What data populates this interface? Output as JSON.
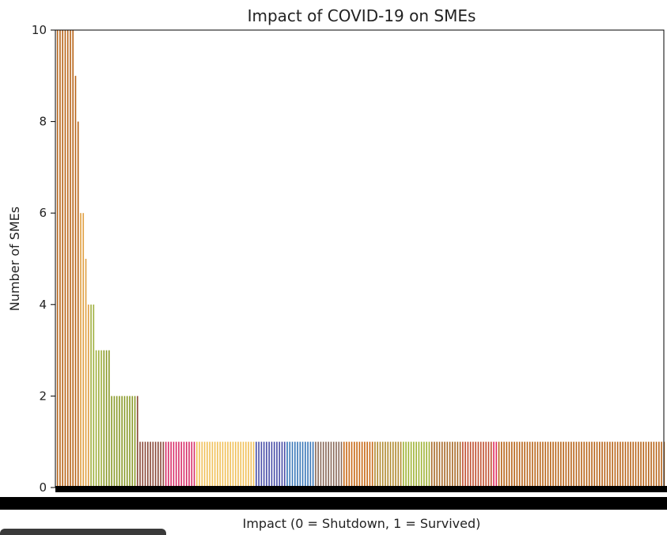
{
  "chart_data": {
    "type": "bar",
    "title": "Impact of COVID-19 on SMEs",
    "xlabel": "Impact (0 = Shutdown, 1 = Survived)",
    "ylabel": "Number of SMEs",
    "ylim": [
      0,
      10
    ],
    "yticks": [
      0,
      2,
      4,
      6,
      8,
      10
    ],
    "grid": false,
    "series": [
      {
        "values": [
          10,
          10,
          10,
          10,
          10,
          10,
          10,
          9,
          8,
          6,
          6,
          5,
          4,
          4,
          4,
          3,
          3,
          3,
          3,
          3,
          3,
          2,
          2,
          2,
          2,
          2,
          2,
          2,
          2,
          2,
          2,
          2,
          1,
          1,
          1,
          1,
          1,
          1,
          1,
          1,
          1,
          1,
          1,
          1,
          1,
          1,
          1,
          1,
          1,
          1,
          1,
          1,
          1,
          1,
          1,
          1,
          1,
          1,
          1,
          1,
          1,
          1,
          1,
          1,
          1,
          1,
          1,
          1,
          1,
          1,
          1,
          1,
          1,
          1,
          1,
          1,
          1,
          1,
          1,
          1,
          1,
          1,
          1,
          1,
          1,
          1,
          1,
          1,
          1,
          1,
          1,
          1,
          1,
          1,
          1,
          1,
          1,
          1,
          1,
          1,
          1,
          1,
          1,
          1,
          1,
          1,
          1,
          1,
          1,
          1,
          1,
          1,
          1,
          1,
          1,
          1,
          1,
          1,
          1,
          1,
          1,
          1,
          1,
          1,
          1,
          1,
          1,
          1,
          1,
          1,
          1,
          1,
          1,
          1,
          1,
          1,
          1,
          1,
          1,
          1,
          1,
          1,
          1,
          1,
          1,
          1,
          1,
          1,
          1,
          1,
          1,
          1,
          1,
          1,
          1,
          1,
          1,
          1,
          1,
          1,
          1,
          1,
          1,
          1,
          1,
          1,
          1,
          1,
          1,
          1,
          1,
          1,
          1,
          1,
          1,
          1,
          1,
          1,
          1,
          1,
          1,
          1,
          1,
          1,
          1,
          1,
          1,
          1,
          1,
          1,
          1,
          1,
          1,
          1,
          1,
          1,
          1,
          1,
          1,
          1,
          1,
          1,
          1,
          1,
          1,
          1,
          1,
          1,
          1,
          1,
          1,
          1,
          1,
          1,
          1,
          1,
          1,
          1,
          1,
          1,
          1,
          1,
          1,
          1,
          1,
          1,
          1,
          1,
          1,
          1,
          1,
          1,
          1,
          1,
          1,
          1
        ]
      }
    ],
    "color_groups": [
      {
        "count": 9,
        "color": "#b8651a"
      },
      {
        "count": 4,
        "color": "#e0a043"
      },
      {
        "count": 5,
        "color": "#a0b040"
      },
      {
        "count": 13,
        "color": "#8a9a2a"
      },
      {
        "count": 11,
        "color": "#8a4a3a"
      },
      {
        "count": 12,
        "color": "#d8306a"
      },
      {
        "count": 23,
        "color": "#f0c05a"
      },
      {
        "count": 12,
        "color": "#4a4fa8"
      },
      {
        "count": 11,
        "color": "#3a78b8"
      },
      {
        "count": 11,
        "color": "#8a6a5a"
      },
      {
        "count": 12,
        "color": "#c86a18"
      },
      {
        "count": 11,
        "color": "#b08a30"
      },
      {
        "count": 11,
        "color": "#a0b438"
      },
      {
        "count": 12,
        "color": "#a86a28"
      },
      {
        "count": 12,
        "color": "#c05030"
      },
      {
        "count": 2,
        "color": "#e03060"
      }
    ]
  }
}
